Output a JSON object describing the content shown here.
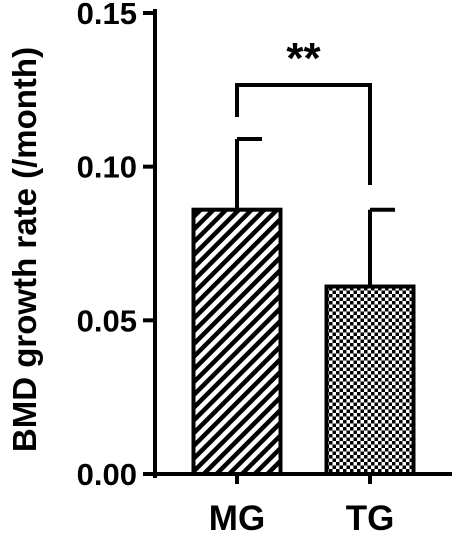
{
  "chart_data": {
    "type": "bar",
    "title": "",
    "xlabel": "",
    "ylabel": "BMD growth rate (/month)",
    "ylim": [
      0,
      0.15
    ],
    "yticks": [
      0.0,
      0.05,
      0.1,
      0.15
    ],
    "ytick_labels": [
      "0.00",
      "0.05",
      "0.10",
      "0.15"
    ],
    "categories": [
      "MG",
      "TG"
    ],
    "values": [
      0.086,
      0.061
    ],
    "errors": [
      0.023,
      0.025
    ],
    "fills": [
      "diagonal-hatch",
      "checkerboard"
    ],
    "significance": {
      "between": [
        "MG",
        "TG"
      ],
      "label": "**"
    },
    "grid": false,
    "legend": "none"
  },
  "colors": {
    "ink": "#000000",
    "background": "#ffffff"
  }
}
